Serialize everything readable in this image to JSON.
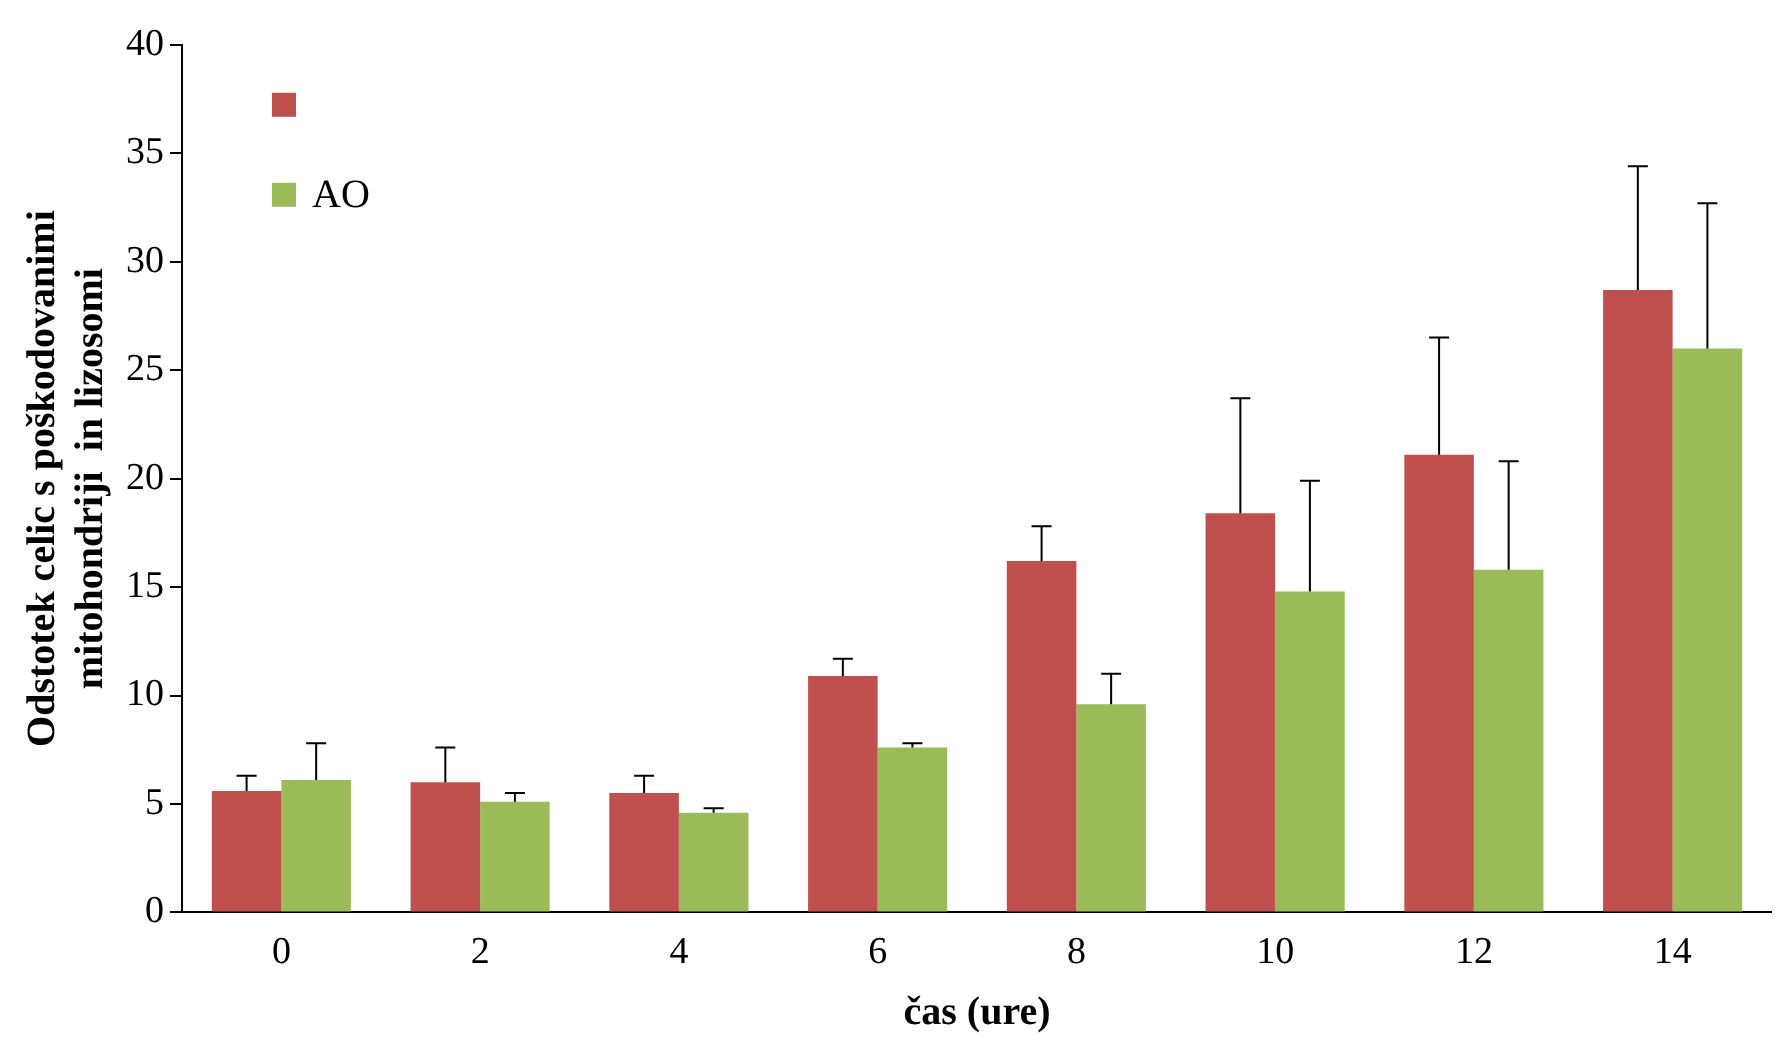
{
  "chart_data": {
    "type": "bar",
    "xlabel": "čas (ure)",
    "ylabel": "Odstotek celic s poškodovanimi\nmitohondriji  in lizosomi",
    "categories": [
      "0",
      "2",
      "4",
      "6",
      "8",
      "10",
      "12",
      "14"
    ],
    "series": [
      {
        "color": "#c0504d",
        "values": [
          5.6,
          6.0,
          5.5,
          10.9,
          16.2,
          18.4,
          21.1,
          28.7
        ],
        "errors": [
          [
            5.6,
            6.3
          ],
          [
            6.0,
            7.6
          ],
          [
            5.5,
            6.3
          ],
          [
            10.9,
            11.7
          ],
          [
            16.2,
            17.8
          ],
          [
            18.4,
            23.7
          ],
          [
            21.1,
            26.5
          ],
          [
            28.7,
            34.4
          ]
        ]
      },
      {
        "name": "AO",
        "color": "#9bbb59",
        "values": [
          6.1,
          5.1,
          4.6,
          7.6,
          9.6,
          14.8,
          15.8,
          26.0
        ],
        "errors": [
          [
            6.1,
            7.8
          ],
          [
            5.1,
            5.5
          ],
          [
            4.6,
            4.8
          ],
          [
            7.6,
            7.8
          ],
          [
            9.6,
            11.0
          ],
          [
            14.8,
            19.9
          ],
          [
            15.8,
            20.8
          ],
          [
            26.0,
            32.7
          ]
        ]
      }
    ],
    "ylim": [
      0,
      40
    ],
    "yticks": [
      0,
      5,
      10,
      15,
      20,
      25,
      30,
      35,
      40
    ],
    "grid": false,
    "legend": "top left"
  }
}
